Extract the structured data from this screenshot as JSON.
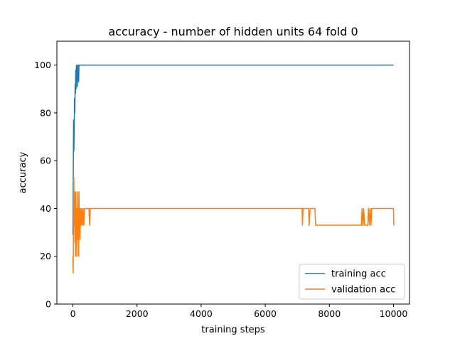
{
  "chart_data": {
    "type": "line",
    "title": "accuracy - number of hidden units 64 fold 0",
    "xlabel": "training steps",
    "ylabel": "accuracy",
    "xlim": [
      -500,
      10500
    ],
    "ylim": [
      0,
      110
    ],
    "x_ticks": [
      0,
      2000,
      4000,
      6000,
      8000,
      10000
    ],
    "y_ticks": [
      0,
      20,
      40,
      60,
      80,
      100
    ],
    "grid": false,
    "legend_position": "bottom-right",
    "series": [
      {
        "name": "training acc",
        "color": "#1f77b4",
        "x": [
          0,
          10,
          20,
          30,
          40,
          50,
          60,
          70,
          80,
          90,
          100,
          110,
          120,
          130,
          140,
          150,
          160,
          170,
          180,
          190,
          200,
          210,
          220,
          10000
        ],
        "y": [
          29,
          52,
          77,
          64,
          72,
          86,
          80,
          92,
          88,
          98,
          90,
          100,
          94,
          98,
          91,
          100,
          96,
          100,
          93,
          100,
          100,
          100,
          100,
          100
        ]
      },
      {
        "name": "validation acc",
        "color": "#ff7f0e",
        "x": [
          0,
          10,
          20,
          30,
          40,
          50,
          60,
          70,
          80,
          90,
          100,
          110,
          120,
          130,
          140,
          150,
          160,
          170,
          180,
          190,
          200,
          210,
          220,
          240,
          260,
          280,
          300,
          320,
          340,
          360,
          400,
          500,
          520,
          540,
          560,
          7150,
          7160,
          7180,
          7200,
          7350,
          7370,
          7400,
          7550,
          7570,
          7590,
          9000,
          9020,
          9050,
          9070,
          9100,
          9200,
          9220,
          9250,
          9270,
          9300,
          9320,
          10000,
          10010
        ],
        "y": [
          20,
          13,
          40,
          53,
          33,
          47,
          26,
          40,
          20,
          47,
          33,
          40,
          20,
          40,
          27,
          47,
          33,
          40,
          20,
          47,
          33,
          40,
          27,
          40,
          33,
          40,
          33,
          40,
          33,
          40,
          40,
          40,
          33,
          40,
          40,
          40,
          33,
          40,
          40,
          40,
          33,
          40,
          40,
          33,
          33,
          33,
          40,
          33,
          40,
          33,
          33,
          40,
          33,
          40,
          33,
          40,
          40,
          33
        ]
      }
    ]
  }
}
